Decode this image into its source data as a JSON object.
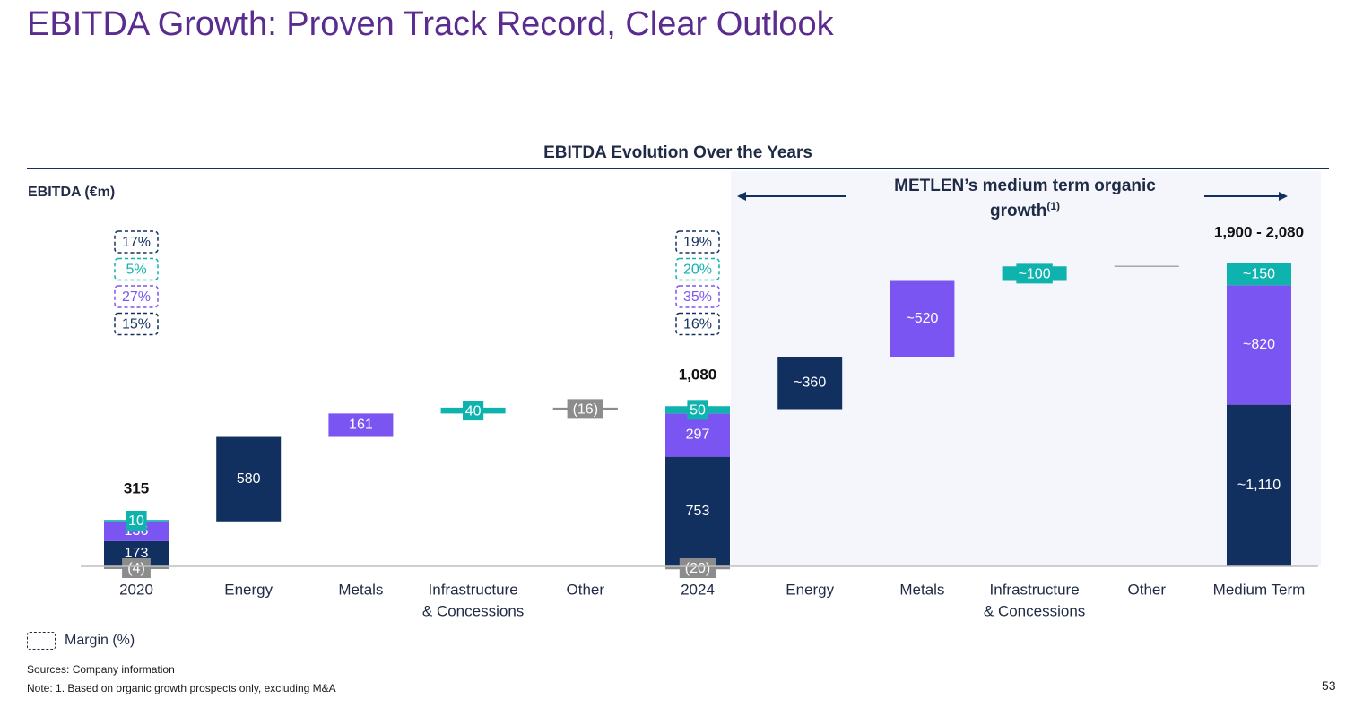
{
  "page": {
    "title": "EBITDA Growth: Proven Track Record, Clear Outlook",
    "page_number": "53"
  },
  "section": {
    "title": "EBITDA Evolution Over the Years"
  },
  "outlook_banner": {
    "text_line1": "METLEN’s medium term organic",
    "text_line2": "growth",
    "superscript": "(1)"
  },
  "legend": {
    "label": "Margin (%)"
  },
  "footnotes": {
    "sources": "Sources: Company information",
    "note": "Note: 1. Based on organic growth prospects only, excluding M&A"
  },
  "colors": {
    "energy": "#12305f",
    "metals": "#7b55f2",
    "infrastructure": "#0fb3ad",
    "other": "#8c8c8c",
    "title": "#5b2c8f",
    "outlook_background": "#f4f6fb"
  },
  "chart_data": {
    "type": "bar",
    "subtype": "waterfall",
    "title": "EBITDA Evolution Over the Years",
    "ylabel": "EBITDA (€m)",
    "ylim": [
      -30,
      2150
    ],
    "categories": [
      "2020",
      "Energy",
      "Metals",
      "Infrastructure & Concessions",
      "Other",
      "2024",
      "Energy",
      "Metals",
      "Infrastructure & Concessions",
      "Other",
      "Medium Term"
    ],
    "category_labels": [
      [
        "2020"
      ],
      [
        "Energy"
      ],
      [
        "Metals"
      ],
      [
        "Infrastructure",
        "& Concessions"
      ],
      [
        "Other"
      ],
      [
        "2024"
      ],
      [
        "Energy"
      ],
      [
        "Metals"
      ],
      [
        "Infrastructure",
        "& Concessions"
      ],
      [
        "Other"
      ],
      [
        "Medium Term"
      ]
    ],
    "stacked_totals": [
      {
        "category": "2020",
        "total_label": "315",
        "segments": [
          {
            "segment": "Other",
            "value": -4,
            "label": "(4)",
            "color": "other"
          },
          {
            "segment": "Energy",
            "value": 173,
            "label": "173",
            "color": "energy"
          },
          {
            "segment": "Metals",
            "value": 136,
            "label": "136",
            "color": "metals"
          },
          {
            "segment": "Infrastructure & Concessions",
            "value": 10,
            "label": "10",
            "color": "infrastructure"
          }
        ],
        "margins": [
          {
            "segment": "Total",
            "label": "17%",
            "color": "energy"
          },
          {
            "segment": "Infrastructure & Concessions",
            "label": "5%",
            "color": "infrastructure"
          },
          {
            "segment": "Metals",
            "label": "27%",
            "color": "metals"
          },
          {
            "segment": "Energy",
            "label": "15%",
            "color": "energy"
          }
        ]
      },
      {
        "category": "2024",
        "total_label": "1,080",
        "segments": [
          {
            "segment": "Other",
            "value": -20,
            "label": "(20)",
            "color": "other"
          },
          {
            "segment": "Energy",
            "value": 753,
            "label": "753",
            "color": "energy"
          },
          {
            "segment": "Metals",
            "value": 297,
            "label": "297",
            "color": "metals"
          },
          {
            "segment": "Infrastructure & Concessions",
            "value": 50,
            "label": "50",
            "color": "infrastructure"
          }
        ],
        "margins": [
          {
            "segment": "Total",
            "label": "19%",
            "color": "energy"
          },
          {
            "segment": "Infrastructure & Concessions",
            "label": "20%",
            "color": "infrastructure"
          },
          {
            "segment": "Metals",
            "label": "35%",
            "color": "metals"
          },
          {
            "segment": "Energy",
            "label": "16%",
            "color": "energy"
          }
        ]
      },
      {
        "category": "Medium Term",
        "total_label": "1,900 - 2,080",
        "segments": [
          {
            "segment": "Energy",
            "value": 1110,
            "label": "~1,110",
            "color": "energy"
          },
          {
            "segment": "Metals",
            "value": 820,
            "label": "~820",
            "color": "metals"
          },
          {
            "segment": "Infrastructure & Concessions",
            "value": 150,
            "label": "~150",
            "color": "infrastructure"
          }
        ]
      }
    ],
    "steps": [
      {
        "category": "Energy",
        "period": "2020-2024",
        "start": 309,
        "end": 889,
        "label": "580",
        "color": "energy"
      },
      {
        "category": "Metals",
        "period": "2020-2024",
        "start": 889,
        "end": 1050,
        "label": "161",
        "color": "metals"
      },
      {
        "category": "Infrastructure & Concessions",
        "period": "2020-2024",
        "start": 1050,
        "end": 1090,
        "label": "40",
        "color": "infrastructure"
      },
      {
        "category": "Other",
        "period": "2020-2024",
        "start": 1090,
        "end": 1074,
        "label": "(16)",
        "color": "other"
      },
      {
        "category": "Energy",
        "period": "Medium term",
        "start": 1080,
        "end": 1440,
        "label": "~360",
        "color": "energy"
      },
      {
        "category": "Metals",
        "period": "Medium term",
        "start": 1440,
        "end": 1960,
        "label": "~520",
        "color": "metals"
      },
      {
        "category": "Infrastructure & Concessions",
        "period": "Medium term",
        "start": 1960,
        "end": 2060,
        "label": "~100",
        "color": "infrastructure"
      },
      {
        "category": "Other",
        "period": "Medium term",
        "start": 2060,
        "end": 2060,
        "label": "",
        "color": "other"
      }
    ],
    "legend": [
      "Margin (%)"
    ],
    "grid": false
  }
}
